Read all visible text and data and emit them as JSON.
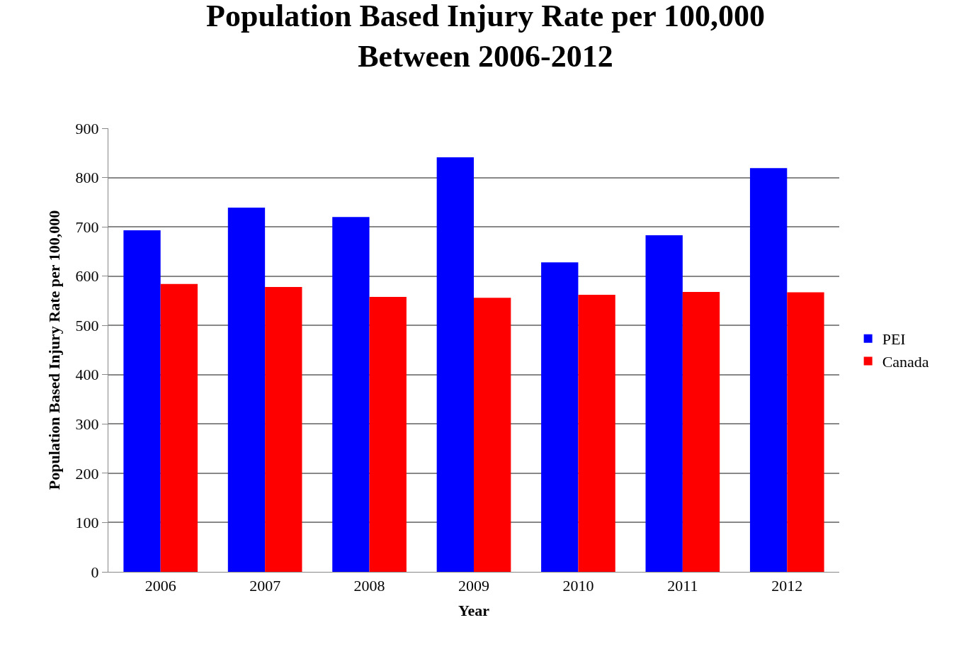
{
  "chart_data": {
    "type": "bar",
    "title": "Population Based Injury Rate per 100,000\nBetween 2006-2012",
    "xlabel": "Year",
    "ylabel": "Population Based Injury Rate per 100,000",
    "categories": [
      "2006",
      "2007",
      "2008",
      "2009",
      "2010",
      "2011",
      "2012"
    ],
    "series": [
      {
        "name": "PEI",
        "color": "#0000ff",
        "values": [
          693,
          739,
          720,
          841,
          628,
          683,
          819
        ]
      },
      {
        "name": "Canada",
        "color": "#ff0000",
        "values": [
          584,
          578,
          558,
          556,
          562,
          568,
          567
        ]
      }
    ],
    "ylim": [
      0,
      900
    ],
    "yticks": [
      0,
      100,
      200,
      300,
      400,
      500,
      600,
      700,
      800,
      900
    ],
    "grid": "y",
    "legend": "right"
  }
}
